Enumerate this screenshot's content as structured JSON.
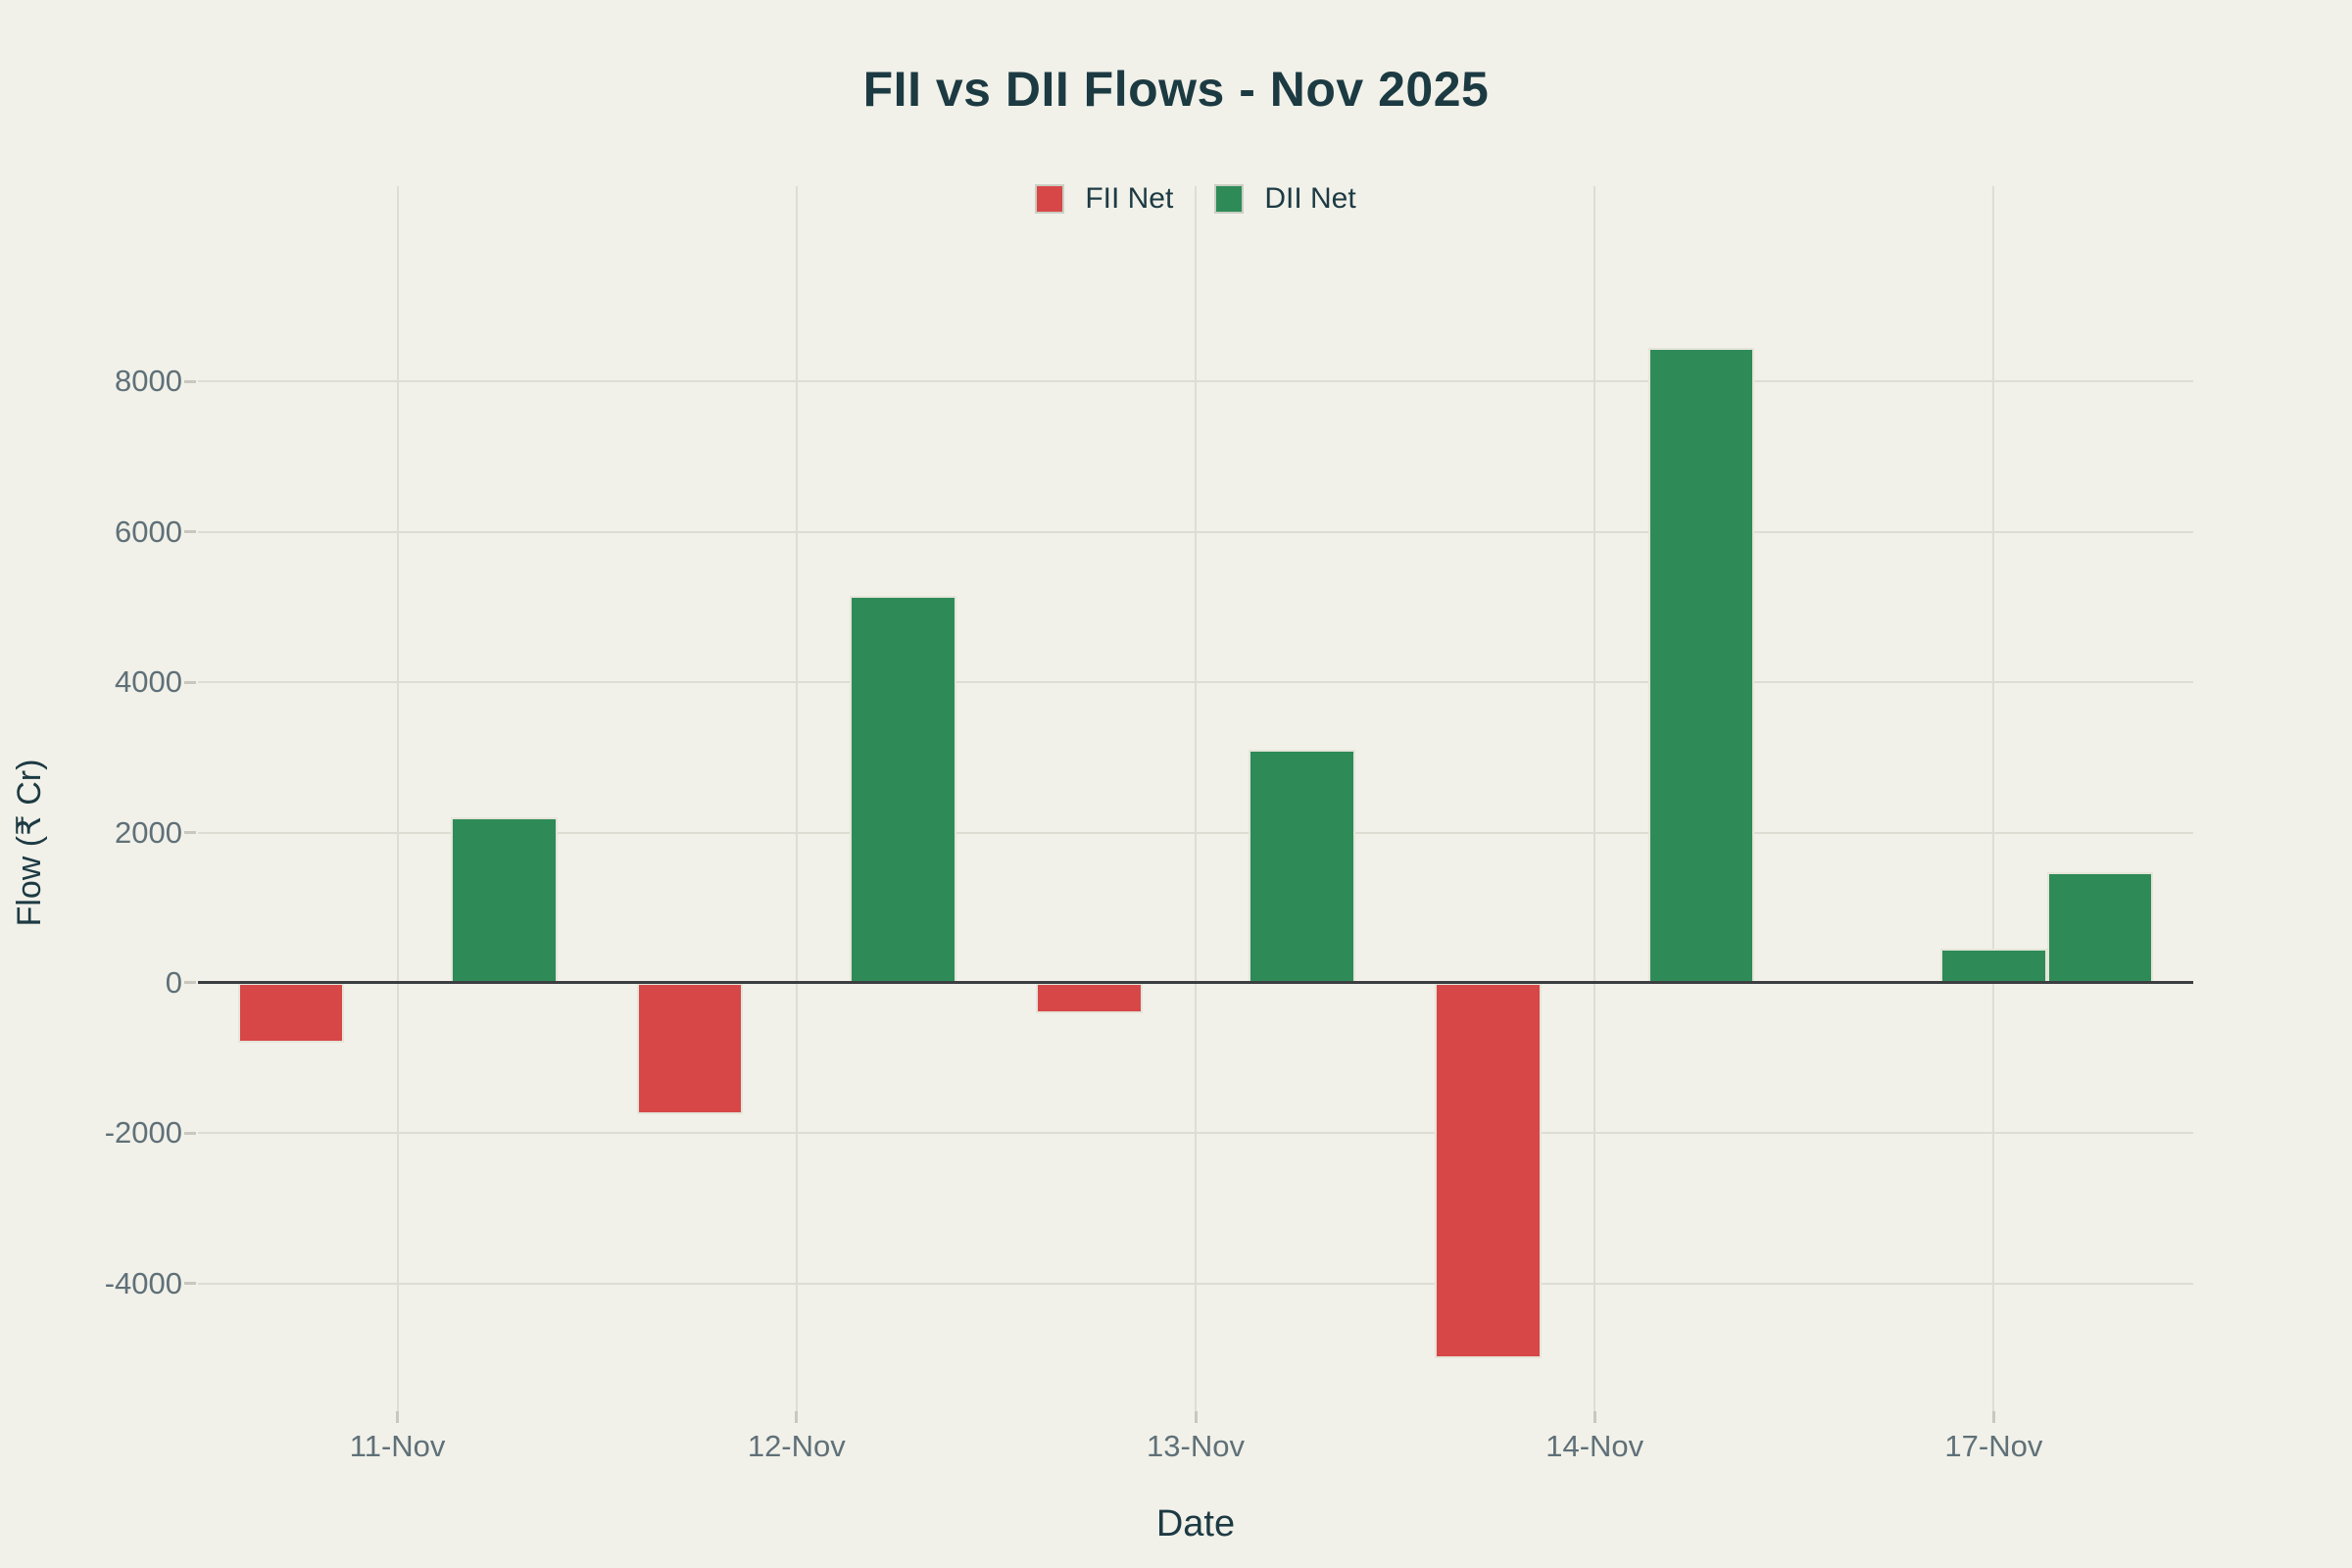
{
  "title": "FII vs DII Flows - Nov 2025",
  "legend": {
    "items": [
      {
        "label": "FII Net",
        "color": "#d74747"
      },
      {
        "label": "DII Net",
        "color": "#2e8b57"
      }
    ]
  },
  "axes": {
    "x_title": "Date",
    "y_title": "Flow (₹ Cr)"
  },
  "chart_data": {
    "type": "bar",
    "title": "FII vs DII Flows - Nov 2025",
    "xlabel": "Date",
    "ylabel": "Flow (₹ Cr)",
    "categories": [
      "11-Nov",
      "12-Nov",
      "13-Nov",
      "14-Nov",
      "17-Nov"
    ],
    "series": [
      {
        "name": "FII Net",
        "values": [
          -800,
          -1750,
          -400,
          -5000,
          450
        ]
      },
      {
        "name": "DII Net",
        "values": [
          2200,
          5150,
          3100,
          8450,
          1475
        ]
      }
    ],
    "yticks": [
      8000,
      6000,
      4000,
      2000,
      0,
      -2000,
      -4000
    ],
    "ylim": [
      -5700,
      10600
    ],
    "grid": true,
    "legend_position": "top-center",
    "color_rule": "bars colored by sign: negative red, positive green",
    "bar_width_category_frac": 0.267,
    "x_offsets_bar_widths": {
      "FII Net": [
        -1,
        -1,
        -1,
        -1,
        0
      ],
      "DII Net": [
        1,
        1,
        1,
        1,
        1
      ]
    }
  },
  "colors": {
    "background": "#f1f1e9",
    "negative_bar": "#d74747",
    "positive_bar": "#2e8b57",
    "bar_edge": "#e6e5da",
    "grid_line": "#deddd3",
    "zero_line": "#3a3e40",
    "tick_text": "#5f7078",
    "heading_text": "#1c3a42"
  }
}
